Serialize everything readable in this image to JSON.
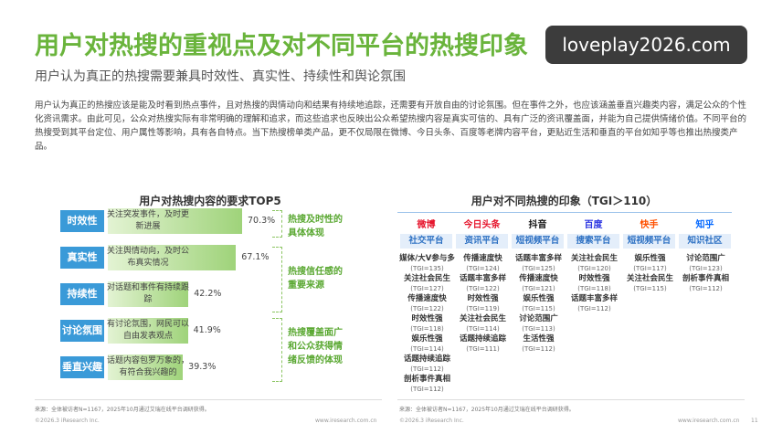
{
  "header": {
    "title": "用户对热搜的重视点及对不同平台的热搜印象",
    "subtitle": "用户认为真正的热搜需要兼具时效性、真实性、持续性和舆论氛围",
    "watermark": "loveplay2026.com"
  },
  "body": {
    "paragraph": "用户认为真正的热搜应该是能及时看到热点事件，且对热搜的舆情动向和结果有持续地追踪，还需要有开放自由的讨论氛围。但在事件之外，也应该涵盖垂直兴趣类内容，满足公众的个性化资讯需求。由此可见，公众对热搜实际有非常明确的理解和追求，而这些追求也反映出公众希望热搜内容是真实可信的、具有广泛的资讯覆盖面，并能为自己提供情绪价值。不同平台的热搜受到其平台定位、用户属性等影响，具有各自特点。当下热搜榜单类产品，更不仅局限在微博、今日头条、百度等老牌内容平台，更贴近生活和垂直的平台如知乎等也推出热搜类产品。"
  },
  "chart_data": {
    "type": "bar",
    "title": "用户对热搜内容的要求TOP5",
    "orientation": "horizontal",
    "color": "#9fd37a",
    "categories": [
      "时效性",
      "真实性",
      "持续性",
      "讨论氛围",
      "垂直兴趣"
    ],
    "descriptions": [
      "关注突发事件，及时更新进展",
      "关注舆情动向，及时公布真实情况",
      "对话题和事件有持续跟踪",
      "有讨论氛围，网民可以自由发表观点",
      "话题内容包罗万象的，有符合我兴趣的"
    ],
    "values": [
      70.3,
      67.1,
      42.2,
      41.9,
      39.3
    ],
    "value_labels": [
      "70.3%",
      "67.1%",
      "42.2%",
      "41.9%",
      "39.3%"
    ],
    "annotations": [
      "热搜及时性的具体体现",
      "热搜信任感的重要来源",
      "热搜覆盖面广和公众获得情绪反馈的体现"
    ],
    "source": "来源：全体被访者N=1167，2025年10月通过艾瑞在线平台调研获得。"
  },
  "table": {
    "title": "用户对不同热搜的印象（TGI＞110）",
    "columns": [
      {
        "platform": "微博",
        "type": "社交平台",
        "items": [
          {
            "name": "媒体/大V参与多",
            "tgi": "(TGI=135)"
          },
          {
            "name": "关注社会民生",
            "tgi": "(TGI=127)"
          },
          {
            "name": "传播速度快",
            "tgi": "(TGI=122)"
          },
          {
            "name": "时效性强",
            "tgi": "(TGI=118)"
          },
          {
            "name": "娱乐性强",
            "tgi": "(TGI=114)"
          },
          {
            "name": "话题持续追踪",
            "tgi": "(TGI=112)"
          },
          {
            "name": "剖析事件真相",
            "tgi": "(TGI=112)"
          }
        ]
      },
      {
        "platform": "今日头条",
        "type": "资讯平台",
        "items": [
          {
            "name": "传播速度快",
            "tgi": "(TGI=124)"
          },
          {
            "name": "话题丰富多样",
            "tgi": "(TGI=122)"
          },
          {
            "name": "时效性强",
            "tgi": "(TGI=119)"
          },
          {
            "name": "关注社会民生",
            "tgi": "(TGI=114)"
          },
          {
            "name": "话题持续追踪",
            "tgi": "(TGI=111)"
          }
        ]
      },
      {
        "platform": "抖音",
        "type": "短视频平台",
        "items": [
          {
            "name": "话题丰富多样",
            "tgi": "(TGI=125)"
          },
          {
            "name": "传播速度快",
            "tgi": "(TGI=121)"
          },
          {
            "name": "娱乐性强",
            "tgi": "(TGI=115)"
          },
          {
            "name": "讨论范围广",
            "tgi": "(TGI=113)"
          },
          {
            "name": "生活性强",
            "tgi": "(TGI=112)"
          }
        ]
      },
      {
        "platform": "百度",
        "type": "搜索平台",
        "items": [
          {
            "name": "关注社会民生",
            "tgi": "(TGI=120)"
          },
          {
            "name": "时效性强",
            "tgi": "(TGI=118)"
          },
          {
            "name": "话题丰富多样",
            "tgi": "(TGI=112)"
          }
        ]
      },
      {
        "platform": "快手",
        "type": "短视频平台",
        "items": [
          {
            "name": "娱乐性强",
            "tgi": "(TGI=117)"
          },
          {
            "name": "关注社会民生",
            "tgi": "(TGI=115)"
          }
        ]
      },
      {
        "platform": "知乎",
        "type": "知识社区",
        "items": [
          {
            "name": "讨论范围广",
            "tgi": "(TGI=123)"
          },
          {
            "name": "剖析事件真相",
            "tgi": "(TGI=112)"
          }
        ]
      }
    ],
    "source": "来源：全体被访者N=1167，2025年10月通过艾瑞在线平台调研获得。"
  },
  "footer": {
    "copyright_left": "©2026.3 iResearch Inc.",
    "url_left": "www.iresearch.com.cn",
    "copyright_right": "©2026.3 iResearch Inc.",
    "url_right": "www.iresearch.com.cn",
    "page": "11"
  }
}
